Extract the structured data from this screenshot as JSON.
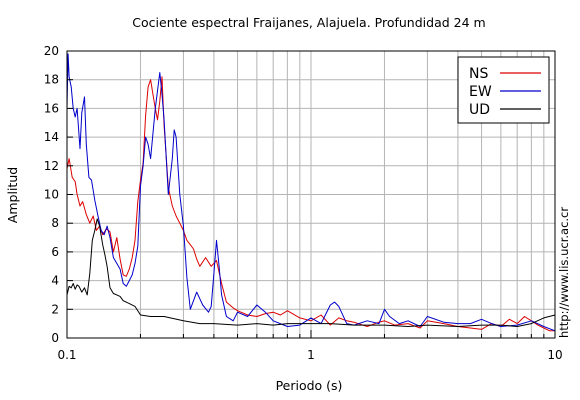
{
  "chart_data": {
    "type": "line",
    "title": "Cociente espectral Fraijanes, Alajuela. Profundidad 24 m",
    "xlabel": "Periodo (s)",
    "ylabel": "Amplitud",
    "xscale": "log",
    "xlim": [
      0.1,
      10
    ],
    "ylim": [
      0,
      20
    ],
    "x_ticks": [
      {
        "value": 0.1,
        "label": "0.1"
      },
      {
        "value": 1,
        "label": "1"
      },
      {
        "value": 10,
        "label": "10"
      }
    ],
    "y_ticks": [
      {
        "value": 0,
        "label": "0"
      },
      {
        "value": 2,
        "label": "2"
      },
      {
        "value": 4,
        "label": "4"
      },
      {
        "value": 6,
        "label": "6"
      },
      {
        "value": 8,
        "label": "8"
      },
      {
        "value": 10,
        "label": "10"
      },
      {
        "value": 12,
        "label": "12"
      },
      {
        "value": 14,
        "label": "14"
      },
      {
        "value": 16,
        "label": "16"
      },
      {
        "value": 18,
        "label": "18"
      },
      {
        "value": 20,
        "label": "20"
      }
    ],
    "grid": true,
    "legend_position": "top-right",
    "annotation": "http://www.lis.ucr.ac.cr",
    "series": [
      {
        "name": "NS",
        "color": "#dd0000",
        "x": [
          0.1,
          0.102,
          0.105,
          0.108,
          0.11,
          0.113,
          0.116,
          0.12,
          0.124,
          0.128,
          0.132,
          0.136,
          0.14,
          0.145,
          0.15,
          0.155,
          0.16,
          0.165,
          0.17,
          0.175,
          0.18,
          0.185,
          0.19,
          0.195,
          0.2,
          0.205,
          0.21,
          0.215,
          0.22,
          0.225,
          0.23,
          0.235,
          0.24,
          0.245,
          0.25,
          0.26,
          0.27,
          0.28,
          0.29,
          0.3,
          0.31,
          0.32,
          0.33,
          0.34,
          0.35,
          0.37,
          0.39,
          0.41,
          0.43,
          0.45,
          0.48,
          0.5,
          0.55,
          0.6,
          0.65,
          0.7,
          0.75,
          0.8,
          0.9,
          1.0,
          1.1,
          1.2,
          1.3,
          1.4,
          1.5,
          1.7,
          1.9,
          2.0,
          2.2,
          2.5,
          2.8,
          3.0,
          3.5,
          4.0,
          4.5,
          5.0,
          5.5,
          6.0,
          6.5,
          7.0,
          7.5,
          8.0,
          8.5,
          9.0,
          9.5,
          10.0
        ],
        "y": [
          11.8,
          12.5,
          11.2,
          10.9,
          10.0,
          9.2,
          9.5,
          8.6,
          8.0,
          8.5,
          7.5,
          7.8,
          7.2,
          7.6,
          7.4,
          6.0,
          7.0,
          5.5,
          4.4,
          4.3,
          4.8,
          5.6,
          6.8,
          9.5,
          11.0,
          12.2,
          15.5,
          17.5,
          18.0,
          17.0,
          16.0,
          15.2,
          16.5,
          18.2,
          14.8,
          10.5,
          9.2,
          8.5,
          8.0,
          7.5,
          6.8,
          6.5,
          6.2,
          5.5,
          5.0,
          5.6,
          5.0,
          5.4,
          3.8,
          2.5,
          2.1,
          1.9,
          1.6,
          1.5,
          1.7,
          1.8,
          1.6,
          1.9,
          1.4,
          1.2,
          1.6,
          0.9,
          1.4,
          1.2,
          1.1,
          0.8,
          1.1,
          1.2,
          0.9,
          1.0,
          0.7,
          1.2,
          1.0,
          0.8,
          0.7,
          0.6,
          1.0,
          0.8,
          1.3,
          1.0,
          1.5,
          1.2,
          0.9,
          0.7,
          0.5,
          0.5
        ]
      },
      {
        "name": "EW",
        "color": "#0000cc",
        "x": [
          0.1,
          0.101,
          0.102,
          0.104,
          0.106,
          0.108,
          0.11,
          0.113,
          0.115,
          0.118,
          0.12,
          0.123,
          0.126,
          0.13,
          0.134,
          0.138,
          0.142,
          0.146,
          0.15,
          0.155,
          0.16,
          0.165,
          0.17,
          0.175,
          0.18,
          0.185,
          0.19,
          0.195,
          0.2,
          0.205,
          0.21,
          0.215,
          0.22,
          0.23,
          0.24,
          0.245,
          0.25,
          0.26,
          0.27,
          0.275,
          0.28,
          0.29,
          0.3,
          0.31,
          0.32,
          0.34,
          0.36,
          0.38,
          0.39,
          0.4,
          0.41,
          0.42,
          0.43,
          0.45,
          0.48,
          0.5,
          0.55,
          0.6,
          0.65,
          0.7,
          0.8,
          0.9,
          1.0,
          1.1,
          1.2,
          1.25,
          1.3,
          1.4,
          1.5,
          1.7,
          1.9,
          2.0,
          2.1,
          2.3,
          2.5,
          2.8,
          3.0,
          3.5,
          4.0,
          4.5,
          5.0,
          5.5,
          6.0,
          7.0,
          8.0,
          9.0,
          10.0
        ],
        "y": [
          16.0,
          19.8,
          18.2,
          17.5,
          16.0,
          15.4,
          16.0,
          13.2,
          15.7,
          16.8,
          13.5,
          11.2,
          11.0,
          9.6,
          8.5,
          7.5,
          7.2,
          7.8,
          7.0,
          5.6,
          5.2,
          4.8,
          3.8,
          3.6,
          4.0,
          4.4,
          5.2,
          6.4,
          10.6,
          12.0,
          14.0,
          13.5,
          12.5,
          16.0,
          18.5,
          17.0,
          15.2,
          10.0,
          12.5,
          14.5,
          14.0,
          10.0,
          7.8,
          4.2,
          2.0,
          3.2,
          2.3,
          1.8,
          2.2,
          4.5,
          6.8,
          5.0,
          3.0,
          1.5,
          1.2,
          1.8,
          1.5,
          2.3,
          1.8,
          1.2,
          0.8,
          0.9,
          1.4,
          1.0,
          2.3,
          2.5,
          2.2,
          1.0,
          0.9,
          1.2,
          1.0,
          2.0,
          1.5,
          1.0,
          1.2,
          0.8,
          1.5,
          1.1,
          1.0,
          1.0,
          1.3,
          1.0,
          0.8,
          0.9,
          1.2,
          0.8,
          0.5
        ]
      },
      {
        "name": "UD",
        "color": "#000000",
        "x": [
          0.1,
          0.102,
          0.104,
          0.106,
          0.108,
          0.11,
          0.112,
          0.115,
          0.118,
          0.121,
          0.124,
          0.127,
          0.13,
          0.133,
          0.136,
          0.14,
          0.143,
          0.146,
          0.15,
          0.155,
          0.16,
          0.165,
          0.17,
          0.18,
          0.19,
          0.2,
          0.22,
          0.25,
          0.3,
          0.35,
          0.4,
          0.5,
          0.6,
          0.7,
          0.8,
          1.0,
          1.2,
          1.5,
          2.0,
          2.5,
          3.0,
          4.0,
          5.0,
          6.0,
          7.0,
          8.0,
          9.0,
          10.0
        ],
        "y": [
          3.0,
          3.6,
          3.5,
          3.8,
          3.4,
          3.7,
          3.6,
          3.2,
          3.5,
          3.0,
          4.5,
          6.8,
          7.5,
          8.3,
          7.8,
          6.5,
          5.8,
          5.0,
          3.5,
          3.1,
          3.0,
          2.9,
          2.6,
          2.4,
          2.2,
          1.6,
          1.5,
          1.5,
          1.2,
          1.0,
          1.0,
          0.9,
          1.0,
          0.9,
          1.0,
          1.0,
          1.0,
          0.9,
          0.9,
          0.8,
          0.9,
          0.8,
          0.9,
          0.9,
          0.8,
          1.0,
          1.4,
          1.6
        ]
      }
    ]
  }
}
